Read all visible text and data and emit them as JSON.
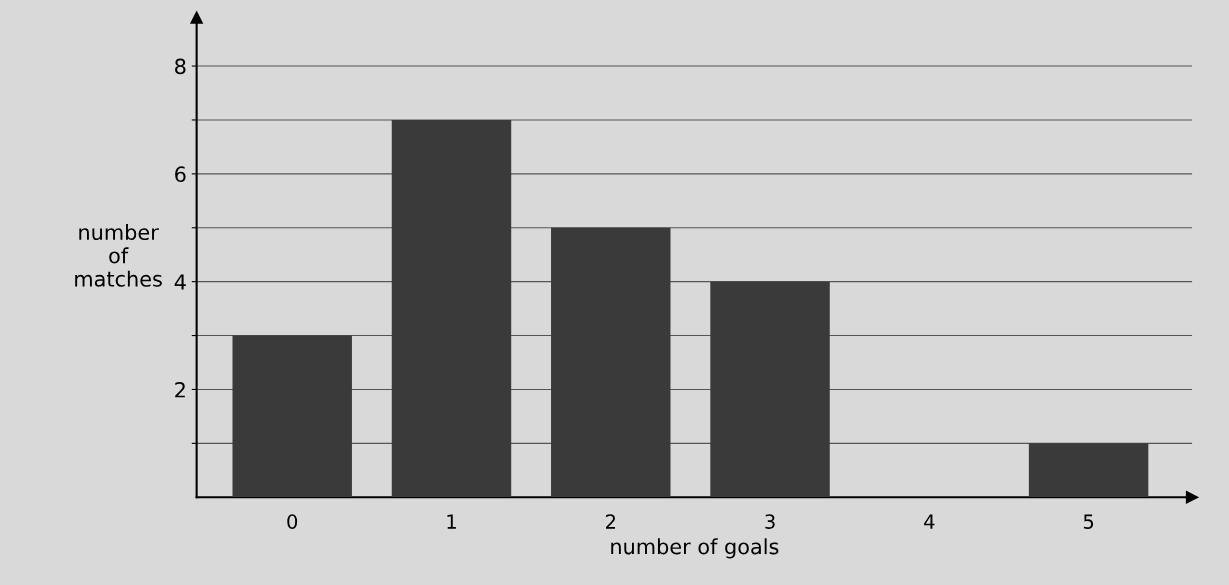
{
  "chart_data": {
    "type": "bar",
    "xlabel": "number of goals",
    "ylabel": "number\nof\nmatches",
    "categories": [
      "0",
      "1",
      "2",
      "3",
      "4",
      "5"
    ],
    "values": [
      3,
      7,
      5,
      4,
      0,
      1
    ],
    "color": "#3a3a3a",
    "ylim": [
      0,
      8.9
    ],
    "yticks": [
      {
        "value": 1,
        "label": null
      },
      2,
      {
        "value": 3,
        "label": null
      },
      4,
      {
        "value": 5,
        "label": null
      },
      6,
      {
        "value": 7,
        "label": null
      },
      8
    ],
    "grid": "y"
  }
}
